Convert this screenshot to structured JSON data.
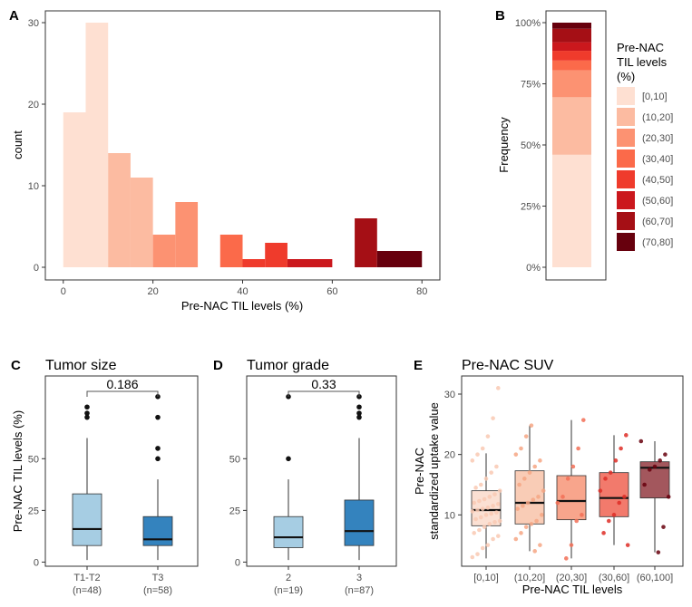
{
  "chart_data": [
    {
      "panel": "A",
      "type": "bar",
      "subtype": "histogram",
      "xlabel": "Pre-NAC TIL levels (%)",
      "ylabel": "count",
      "xlim": [
        -4,
        84
      ],
      "ylim": [
        0,
        30
      ],
      "xticks": [
        "0",
        "20",
        "40",
        "60",
        "80"
      ],
      "yticks": [
        "0",
        "10",
        "20",
        "30"
      ],
      "bins": [
        {
          "x0": 0,
          "x1": 5,
          "count": 19,
          "group": "[0,10]"
        },
        {
          "x0": 5,
          "x1": 10,
          "count": 30,
          "group": "[0,10]"
        },
        {
          "x0": 10,
          "x1": 15,
          "count": 14,
          "group": "(10,20]"
        },
        {
          "x0": 15,
          "x1": 20,
          "count": 11,
          "group": "(10,20]"
        },
        {
          "x0": 20,
          "x1": 25,
          "count": 4,
          "group": "(20,30]"
        },
        {
          "x0": 25,
          "x1": 30,
          "count": 8,
          "group": "(20,30]"
        },
        {
          "x0": 35,
          "x1": 40,
          "count": 4,
          "group": "(30,40]"
        },
        {
          "x0": 40,
          "x1": 45,
          "count": 1,
          "group": "(40,50]"
        },
        {
          "x0": 45,
          "x1": 50,
          "count": 3,
          "group": "(40,50]"
        },
        {
          "x0": 50,
          "x1": 60,
          "count": 1,
          "group": "(50,60]"
        },
        {
          "x0": 65,
          "x1": 70,
          "count": 6,
          "group": "(60,70]"
        },
        {
          "x0": 70,
          "x1": 80,
          "count": 2,
          "group": "(70,80]"
        }
      ]
    },
    {
      "panel": "B",
      "type": "bar",
      "subtype": "stacked-proportion",
      "ylabel": "Frequency",
      "yticks": [
        "0%",
        "25%",
        "50%",
        "75%",
        "100%"
      ],
      "legend_title": "Pre-NAC TIL levels (%)",
      "legend_title_lines": [
        "Pre-NAC",
        "TIL levels",
        "(%)"
      ],
      "legend_position": "right",
      "series": [
        {
          "name": "[0,10]",
          "value": 0.46
        },
        {
          "name": "(10,20]",
          "value": 0.235
        },
        {
          "name": "(20,30]",
          "value": 0.11
        },
        {
          "name": "(30,40]",
          "value": 0.04
        },
        {
          "name": "(40,50]",
          "value": 0.04
        },
        {
          "name": "(50,60]",
          "value": 0.035
        },
        {
          "name": "(60,70]",
          "value": 0.055
        },
        {
          "name": "(70,80]",
          "value": 0.025
        }
      ]
    },
    {
      "panel": "C",
      "type": "boxplot",
      "title": "Tumor size",
      "ylabel": "Pre-NAC TIL levels (%)",
      "ylim": [
        -2,
        90
      ],
      "yticks": [
        "0",
        "25",
        "50"
      ],
      "pvalue": "0.186",
      "groups": [
        {
          "label": "T1-T2",
          "n": "(n=48)",
          "q1": 8,
          "median": 16,
          "q3": 33,
          "whisker_low": 1,
          "whisker_high": 60,
          "outliers": [
            70,
            72,
            75
          ],
          "fill": "#a6cde3"
        },
        {
          "label": "T3",
          "n": "(n=58)",
          "q1": 8,
          "median": 11,
          "q3": 22,
          "whisker_low": 1,
          "whisker_high": 40,
          "outliers": [
            50,
            55,
            70,
            80
          ],
          "fill": "#3483be"
        }
      ]
    },
    {
      "panel": "D",
      "type": "boxplot",
      "title": "Tumor grade",
      "ylim": [
        -2,
        90
      ],
      "yticks": [
        "0",
        "25",
        "50"
      ],
      "pvalue": "0.33",
      "groups": [
        {
          "label": "2",
          "n": "(n=19)",
          "q1": 7,
          "median": 12,
          "q3": 22,
          "whisker_low": 1,
          "whisker_high": 40,
          "outliers": [
            50,
            80
          ],
          "fill": "#a6cde3"
        },
        {
          "label": "3",
          "n": "(n=87)",
          "q1": 8,
          "median": 15,
          "q3": 30,
          "whisker_low": 1,
          "whisker_high": 60,
          "outliers": [
            70,
            72,
            75,
            80
          ],
          "fill": "#3483be"
        }
      ]
    },
    {
      "panel": "E",
      "type": "boxplot",
      "title": "Pre-NAC SUV",
      "ylabel_lines": [
        "Pre-NAC",
        "standardized uptake value"
      ],
      "xlabel": "Pre-NAC TIL levels",
      "ylim": [
        1.5,
        33
      ],
      "yticks": [
        "10",
        "20",
        "30"
      ],
      "groups": [
        {
          "label": "[0,10]",
          "q1": 8.2,
          "median": 10.8,
          "q3": 14,
          "whisker_low": 2.8,
          "whisker_high": 20.2,
          "fill": "#fbe0d3",
          "point": "#f9c9b3",
          "points": [
            3,
            3.5,
            4.5,
            5,
            6,
            6.5,
            7,
            7.5,
            8,
            8.5,
            8.8,
            9,
            9.3,
            9.6,
            10,
            10.2,
            10.4,
            10.6,
            10.8,
            11,
            11.2,
            11.5,
            11.8,
            12,
            12.3,
            12.6,
            13,
            13.4,
            14,
            14.5,
            15,
            16,
            17,
            18,
            19,
            20,
            21,
            23,
            26,
            31
          ]
        },
        {
          "label": "(10,20]",
          "q1": 8.5,
          "median": 12,
          "q3": 17.3,
          "whisker_low": 4,
          "whisker_high": 24.8,
          "fill": "#f9ccb6",
          "point": "#f6a684",
          "points": [
            4,
            5,
            6,
            7,
            8,
            8.5,
            9,
            10,
            11,
            11.5,
            12,
            12.5,
            13,
            14,
            15,
            16,
            17,
            18,
            19,
            20,
            21,
            23,
            24.8
          ]
        },
        {
          "label": "(20,30]",
          "q1": 9.2,
          "median": 12.3,
          "q3": 16.5,
          "whisker_low": 2.8,
          "whisker_high": 25.7,
          "fill": "#f8a58c",
          "point": "#f26e56",
          "points": [
            2.8,
            5,
            9,
            10,
            12,
            13,
            16,
            18,
            21,
            25.7
          ]
        },
        {
          "label": "(30,60]",
          "q1": 9.7,
          "median": 12.8,
          "q3": 17,
          "whisker_low": 5,
          "whisker_high": 23.2,
          "fill": "#f27a6c",
          "point": "#de2d26",
          "points": [
            5,
            7,
            9,
            10,
            12,
            13,
            14,
            16,
            17,
            19,
            21,
            23.2
          ]
        },
        {
          "label": "(60,100]",
          "q1": 12.8,
          "median": 17.8,
          "q3": 18.8,
          "whisker_low": 3.8,
          "whisker_high": 22.2,
          "fill": "#a3575d",
          "point": "#67000d",
          "points": [
            3.8,
            8,
            13,
            15,
            17.5,
            18,
            19,
            20,
            22.2
          ]
        }
      ]
    }
  ],
  "panel_letters": {
    "a": "A",
    "b": "B",
    "c": "C",
    "d": "D",
    "e": "E"
  },
  "colors": {
    "palette": [
      "#fee0d2",
      "#fcbba1",
      "#fc9272",
      "#fb6a4a",
      "#ef3b2c",
      "#cb181d",
      "#a50f15",
      "#67000d"
    ],
    "box_light": "#a6cde3",
    "box_dark": "#3483be"
  }
}
